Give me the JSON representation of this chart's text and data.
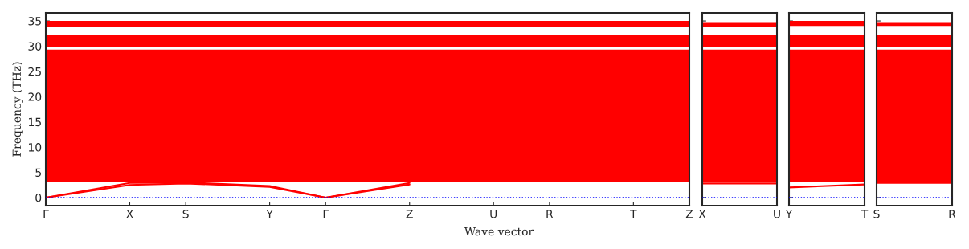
{
  "chart_data": [
    {
      "type": "line",
      "ylabel": "Frequency (THz)",
      "xlabel": "Wave vector",
      "categories": [
        "Γ",
        null,
        null,
        null,
        null,
        null,
        "X",
        null,
        null,
        null,
        "S",
        null,
        null,
        null,
        null,
        null,
        "Y",
        null,
        null,
        null,
        "Γ",
        null,
        null,
        null,
        null,
        null,
        "Z",
        null,
        null,
        null,
        null,
        null,
        "U",
        null,
        null,
        null,
        "R",
        null,
        null,
        null,
        null,
        null,
        "T",
        null,
        null,
        null,
        "Z"
      ],
      "ylim": [
        -1.6,
        36.6
      ],
      "yticks": [
        0,
        5,
        10,
        15,
        20,
        25,
        30,
        35
      ],
      "series": [
        {
          "color": "#ff0000",
          "values": [
            0,
            null,
            null,
            null,
            null,
            null,
            2.5,
            null,
            null,
            null,
            2.8,
            null,
            null,
            null,
            null,
            null,
            2.1,
            null,
            null,
            null,
            0,
            null,
            null,
            null,
            null,
            null,
            2.6,
            null,
            null,
            null,
            null,
            null,
            null,
            null,
            null,
            null,
            null,
            null,
            null,
            null,
            null,
            null,
            null,
            null,
            null,
            null,
            null
          ]
        },
        {
          "color": "#ff0000",
          "values": [
            0,
            null,
            null,
            null,
            null,
            null,
            2.9,
            null,
            null,
            null,
            3,
            null,
            null,
            null,
            null,
            null,
            2.3,
            null,
            null,
            null,
            0,
            null,
            null,
            null,
            null,
            null,
            2.9,
            null,
            null,
            null,
            null,
            null,
            null,
            null,
            null,
            null,
            null,
            null,
            null,
            null,
            null,
            null,
            null,
            null,
            null,
            null,
            null
          ]
        }
      ],
      "bands": [
        {
          "axis": "y",
          "from": 3,
          "to": 29.3,
          "color": "#ff0000"
        },
        {
          "axis": "y",
          "from": 29.9,
          "to": 32.3,
          "color": "#ff0000"
        },
        {
          "axis": "y",
          "from": 33.9,
          "to": 35,
          "color": "#ff0000"
        }
      ],
      "ref_lines": [
        {
          "axis": "y",
          "value": 0,
          "color": "#0000ff",
          "line_style": "dotted"
        }
      ]
    },
    {
      "type": "line",
      "tick_labels": "x",
      "categories": [
        "X",
        null,
        null,
        null,
        null,
        null,
        null,
        null,
        "U"
      ],
      "ylim": [
        -1.6,
        36.6
      ],
      "yticks": [
        {
          "value": 0,
          "label": null
        },
        {
          "value": 5,
          "label": null
        },
        {
          "value": 10,
          "label": null
        },
        {
          "value": 15,
          "label": null
        },
        {
          "value": 20,
          "label": null
        },
        {
          "value": 25,
          "label": null
        },
        {
          "value": 30,
          "label": null
        },
        {
          "value": 35,
          "label": null
        }
      ],
      "series": [
        {
          "color": "#ff0000",
          "values": [
            2.8,
            null,
            null,
            null,
            null,
            null,
            null,
            null,
            2.8
          ]
        }
      ],
      "bands": [
        {
          "axis": "y",
          "from": 3,
          "to": 29.3,
          "color": "#ff0000"
        },
        {
          "axis": "y",
          "from": 29.9,
          "to": 32.3,
          "color": "#ff0000"
        },
        {
          "axis": "y",
          "from": 33.9,
          "to": 34.6,
          "color": "#ff0000"
        }
      ],
      "ref_lines": [
        {
          "axis": "y",
          "value": 0,
          "color": "#0000ff",
          "line_style": "dotted"
        }
      ]
    },
    {
      "type": "line",
      "tick_labels": "x",
      "categories": [
        "Y",
        null,
        null,
        null,
        null,
        null,
        null,
        null,
        "T"
      ],
      "ylim": [
        -1.6,
        36.6
      ],
      "yticks": [
        {
          "value": 0,
          "label": null
        },
        {
          "value": 5,
          "label": null
        },
        {
          "value": 10,
          "label": null
        },
        {
          "value": 15,
          "label": null
        },
        {
          "value": 20,
          "label": null
        },
        {
          "value": 25,
          "label": null
        },
        {
          "value": 30,
          "label": null
        },
        {
          "value": 35,
          "label": null
        }
      ],
      "series": [
        {
          "color": "#ff0000",
          "values": [
            2.0,
            null,
            null,
            null,
            null,
            null,
            null,
            null,
            2.6
          ]
        }
      ],
      "bands": [
        {
          "axis": "y",
          "from": 3,
          "to": 29.3,
          "color": "#ff0000"
        },
        {
          "axis": "y",
          "from": 29.9,
          "to": 32.3,
          "color": "#ff0000"
        },
        {
          "axis": "y",
          "from": 34,
          "to": 35,
          "color": "#ff0000"
        }
      ],
      "ref_lines": [
        {
          "axis": "y",
          "value": 0,
          "color": "#0000ff",
          "line_style": "dotted"
        }
      ]
    },
    {
      "type": "line",
      "tick_labels": "x",
      "categories": [
        "S",
        null,
        null,
        null,
        null,
        null,
        null,
        null,
        "R"
      ],
      "ylim": [
        -1.6,
        36.6
      ],
      "yticks": [
        {
          "value": 0,
          "label": null
        },
        {
          "value": 5,
          "label": null
        },
        {
          "value": 10,
          "label": null
        },
        {
          "value": 15,
          "label": null
        },
        {
          "value": 20,
          "label": null
        },
        {
          "value": 25,
          "label": null
        },
        {
          "value": 30,
          "label": null
        },
        {
          "value": 35,
          "label": null
        }
      ],
      "series": [
        {
          "color": "#ff0000",
          "values": [
            2.9,
            null,
            null,
            null,
            null,
            null,
            null,
            null,
            2.9
          ]
        }
      ],
      "bands": [
        {
          "axis": "y",
          "from": 3,
          "to": 29.3,
          "color": "#ff0000"
        },
        {
          "axis": "y",
          "from": 29.9,
          "to": 32.3,
          "color": "#ff0000"
        },
        {
          "axis": "y",
          "from": 34,
          "to": 34.6,
          "color": "#ff0000"
        }
      ],
      "ref_lines": [
        {
          "axis": "y",
          "value": 0,
          "color": "#0000ff",
          "line_style": "dotted"
        }
      ]
    }
  ]
}
